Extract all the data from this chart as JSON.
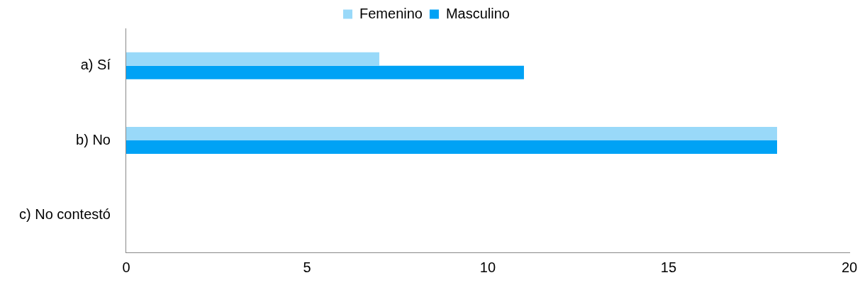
{
  "chart_data": {
    "type": "bar",
    "orientation": "horizontal",
    "categories": [
      "a) Sí",
      "b) No",
      "c) No contestó"
    ],
    "series": [
      {
        "name": "Femenino",
        "color": "#99d9f9",
        "values": [
          7,
          18,
          0
        ]
      },
      {
        "name": "Masculino",
        "color": "#00a2f5",
        "values": [
          11,
          18,
          0
        ]
      }
    ],
    "xlim": [
      0,
      20
    ],
    "xticks": [
      0,
      5,
      10,
      15,
      20
    ],
    "grid": false,
    "legend": "top"
  }
}
